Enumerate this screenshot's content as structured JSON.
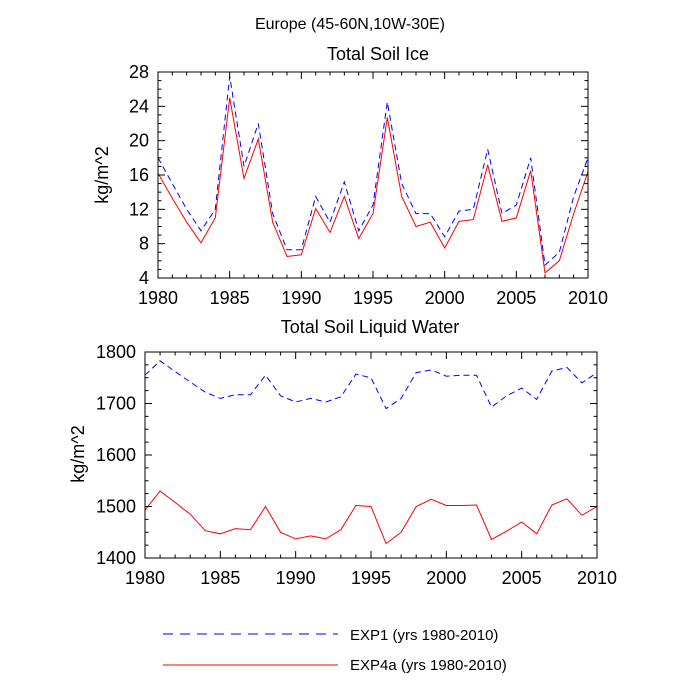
{
  "figure_title": "Europe (45-60N,10W-30E)",
  "legend": [
    {
      "label": "EXP1 (yrs 1980-2010)",
      "color": "#0000ff",
      "dash": true
    },
    {
      "label": "EXP4a (yrs 1980-2010)",
      "color": "#ff0000",
      "dash": false
    }
  ],
  "chart_data": [
    {
      "type": "line",
      "title": "Total Soil Ice",
      "xlabel": "",
      "ylabel": "kg/m^2",
      "xlim": [
        1980,
        2010
      ],
      "ylim": [
        4,
        28
      ],
      "xticks": [
        1980,
        1985,
        1990,
        1995,
        2000,
        2005,
        2010
      ],
      "yticks": [
        4,
        8,
        12,
        16,
        20,
        24,
        28
      ],
      "x": [
        1980,
        1981,
        1982,
        1983,
        1984,
        1985,
        1986,
        1987,
        1988,
        1989,
        1990,
        1991,
        1992,
        1993,
        1994,
        1995,
        1996,
        1997,
        1998,
        1999,
        2000,
        2001,
        2002,
        2003,
        2004,
        2005,
        2006,
        2007,
        2008,
        2009,
        2010
      ],
      "series": [
        {
          "name": "EXP1 (yrs 1980-2010)",
          "color": "#0000ff",
          "dash": true,
          "values": [
            18.0,
            15.0,
            12.0,
            9.5,
            12.0,
            27.5,
            17.0,
            22.0,
            11.5,
            7.3,
            7.3,
            13.5,
            10.5,
            15.2,
            9.5,
            12.5,
            24.5,
            15.0,
            11.5,
            11.5,
            8.8,
            11.8,
            12.0,
            19.0,
            11.5,
            12.5,
            18.0,
            5.5,
            7.0,
            13.5,
            18.0
          ]
        },
        {
          "name": "EXP4a (yrs 1980-2010)",
          "color": "#ff0000",
          "dash": false,
          "values": [
            16.2,
            13.3,
            10.5,
            8.1,
            11.0,
            25.0,
            15.6,
            20.2,
            10.5,
            6.5,
            6.7,
            12.1,
            9.3,
            13.5,
            8.6,
            11.5,
            22.7,
            13.5,
            10.0,
            10.5,
            7.5,
            10.6,
            10.8,
            17.2,
            10.6,
            11.0,
            16.5,
            4.6,
            6.0,
            11.5,
            16.4
          ]
        }
      ]
    },
    {
      "type": "line",
      "title": "Total Soil Liquid Water",
      "xlabel": "",
      "ylabel": "kg/m^2",
      "xlim": [
        1980,
        2010
      ],
      "ylim": [
        1400,
        1800
      ],
      "xticks": [
        1980,
        1985,
        1990,
        1995,
        2000,
        2005,
        2010
      ],
      "yticks": [
        1400,
        1500,
        1600,
        1700,
        1800
      ],
      "x": [
        1980,
        1981,
        1982,
        1983,
        1984,
        1985,
        1986,
        1987,
        1988,
        1989,
        1990,
        1991,
        1992,
        1993,
        1994,
        1995,
        1996,
        1997,
        1998,
        1999,
        2000,
        2001,
        2002,
        2003,
        2004,
        2005,
        2006,
        2007,
        2008,
        2009,
        2010
      ],
      "series": [
        {
          "name": "EXP1 (yrs 1980-2010)",
          "color": "#0000ff",
          "dash": true,
          "values": [
            1755,
            1783,
            1762,
            1742,
            1722,
            1710,
            1717,
            1717,
            1755,
            1715,
            1703,
            1710,
            1703,
            1713,
            1757,
            1750,
            1690,
            1710,
            1760,
            1765,
            1753,
            1755,
            1755,
            1693,
            1715,
            1730,
            1708,
            1763,
            1770,
            1740,
            1760
          ]
        },
        {
          "name": "EXP4a (yrs 1980-2010)",
          "color": "#ff0000",
          "dash": false,
          "values": [
            1493,
            1530,
            1508,
            1485,
            1453,
            1447,
            1457,
            1455,
            1500,
            1450,
            1437,
            1443,
            1437,
            1455,
            1502,
            1500,
            1428,
            1450,
            1500,
            1514,
            1502,
            1502,
            1503,
            1436,
            1452,
            1470,
            1447,
            1503,
            1515,
            1483,
            1500
          ]
        }
      ]
    }
  ]
}
